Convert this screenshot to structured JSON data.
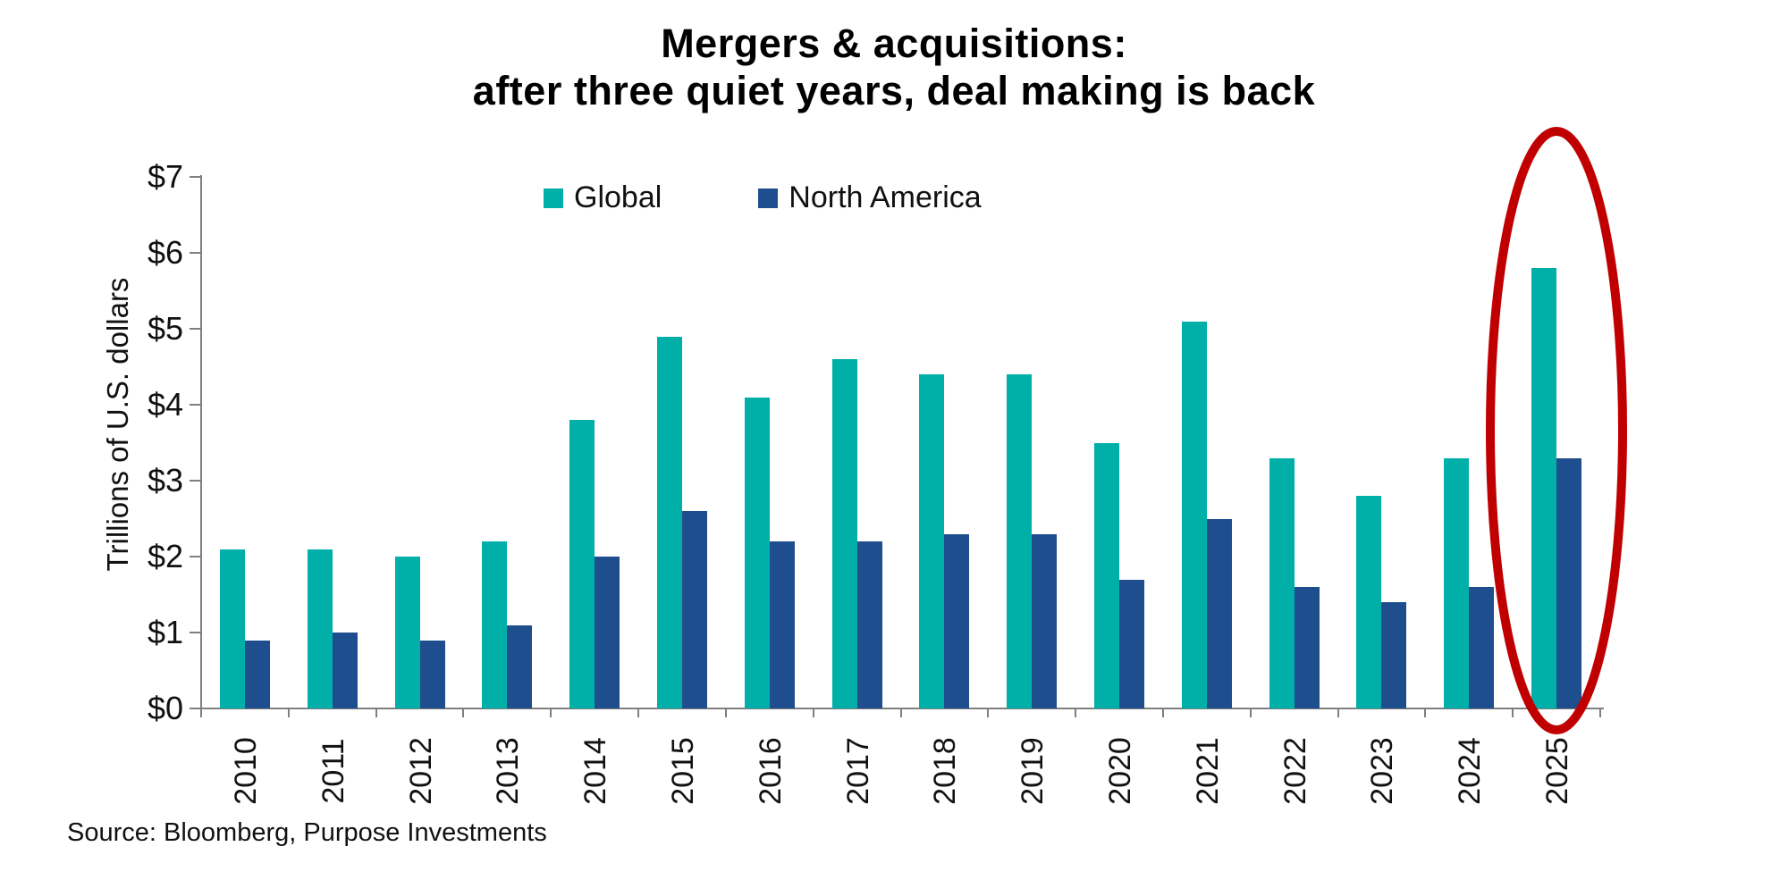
{
  "title": {
    "line1": "Mergers & acquisitions:",
    "line2": "after three quiet years, deal making is back"
  },
  "source": "Source: Bloomberg, Purpose Investments",
  "colors": {
    "global_series": "#00B0A8",
    "north_america_series": "#1F4E8E",
    "highlight_circle": "#C00000",
    "axis": "#7F7F7F",
    "text": "#111111"
  },
  "chart_data": {
    "type": "bar",
    "title": "Mergers & acquisitions: after three quiet years, deal making is back",
    "xlabel": "",
    "ylabel": "Trillions of U.S. dollars",
    "ylim": [
      0,
      7
    ],
    "y_tick_labels": [
      "$0",
      "$1",
      "$2",
      "$3",
      "$4",
      "$5",
      "$6",
      "$7"
    ],
    "grid": false,
    "legend_position": "top-center",
    "categories": [
      "2010",
      "2011",
      "2012",
      "2013",
      "2014",
      "2015",
      "2016",
      "2017",
      "2018",
      "2019",
      "2020",
      "2021",
      "2022",
      "2023",
      "2024",
      "2025"
    ],
    "series": [
      {
        "name": "Global",
        "color": "#00B0A8",
        "values": [
          2.1,
          2.1,
          2.0,
          2.2,
          3.8,
          4.9,
          4.1,
          4.6,
          4.4,
          4.4,
          3.5,
          5.1,
          3.3,
          2.8,
          3.3,
          5.8
        ]
      },
      {
        "name": "North America",
        "color": "#1F4E8E",
        "values": [
          0.9,
          1.0,
          0.9,
          1.1,
          2.0,
          2.6,
          2.2,
          2.2,
          2.3,
          2.3,
          1.7,
          2.5,
          1.6,
          1.4,
          1.6,
          3.3
        ]
      }
    ],
    "annotation": {
      "type": "ellipse",
      "target_category": "2025",
      "color": "#C00000"
    }
  }
}
